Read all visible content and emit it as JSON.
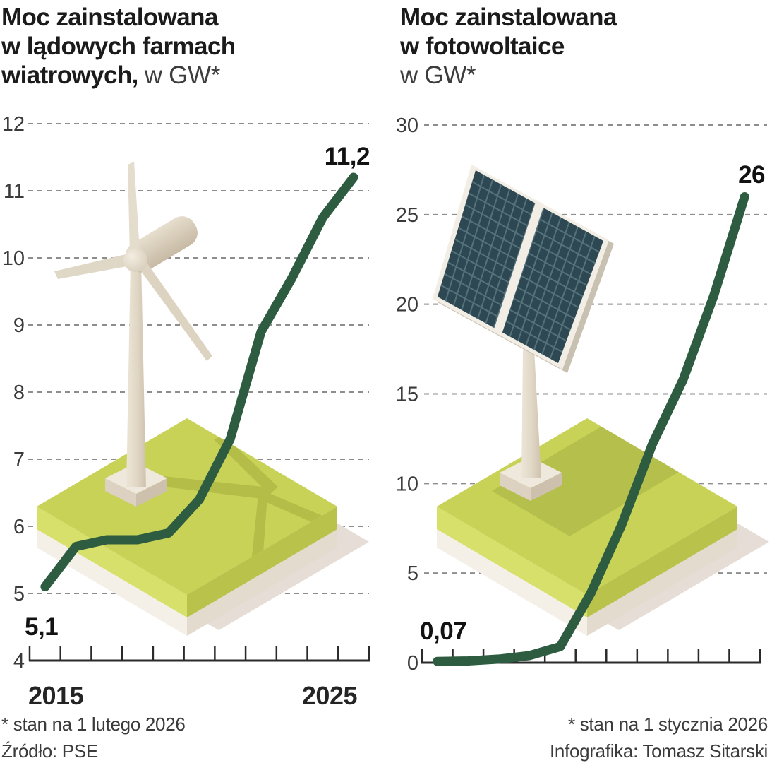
{
  "chart_data": [
    {
      "type": "line",
      "title": "Moc zainstalowana w lądowych farmach wiatrowych",
      "unit": "w GW*",
      "x": [
        2015,
        2016,
        2017,
        2018,
        2019,
        2020,
        2021,
        2022,
        2023,
        2024,
        2025
      ],
      "values": [
        5.1,
        5.7,
        5.8,
        5.8,
        5.9,
        6.4,
        7.3,
        8.9,
        9.7,
        10.6,
        11.2
      ],
      "ylim": [
        4,
        12
      ],
      "yticks": [
        4,
        5,
        6,
        7,
        8,
        9,
        10,
        11,
        12
      ],
      "xtick_labels": [
        "2015",
        "2025"
      ],
      "start_label": "5,1",
      "end_label": "11,2",
      "line_color": "#2d5c40",
      "grid": "dashed horizontal",
      "legend": "none"
    },
    {
      "type": "line",
      "title": "Moc zainstalowana w fotowoltaice",
      "unit": "w GW*",
      "x": [
        2015,
        2016,
        2017,
        2018,
        2019,
        2020,
        2021,
        2022,
        2023,
        2024,
        2025
      ],
      "values": [
        0.07,
        0.1,
        0.2,
        0.4,
        0.9,
        3.9,
        7.7,
        12.2,
        15.8,
        20.5,
        26
      ],
      "ylim": [
        0,
        30
      ],
      "yticks": [
        0,
        5,
        10,
        15,
        20,
        25,
        30
      ],
      "xtick_labels": [],
      "start_label": "0,07",
      "end_label": "26",
      "line_color": "#2d5c40",
      "grid": "dashed horizontal",
      "legend": "none"
    }
  ],
  "titles": [
    {
      "line1": "Moc zainstalowana",
      "line2": "w lądowych farmach",
      "line3_bold": "wiatrowych,",
      "unit": "w GW*"
    },
    {
      "line1": "Moc zainstalowana",
      "line2": "w fotowoltaice",
      "unit": "w GW*"
    }
  ],
  "footers": {
    "left_note": "* stan na 1 lutego 2026",
    "left_source": "Źródło: PSE",
    "right_note": "* stan na 1 stycznia 2026",
    "right_credit": "Infografika: Tomasz Sitarski"
  },
  "colors": {
    "line": "#2d5c40",
    "gridline": "#8d8d8d",
    "axis": "#2b2b2b",
    "platform_green_top": "#c8d257",
    "platform_green_shadow": "#b3bd48",
    "panel_teal": "#2d4852",
    "turbine_beige": "#dcd1bf",
    "background": "#ffffff"
  }
}
